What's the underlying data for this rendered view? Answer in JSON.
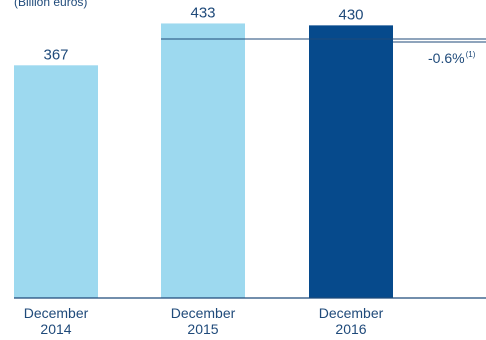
{
  "chart_data": {
    "type": "bar",
    "unit_label": "(Billion euros)",
    "categories": [
      [
        "December",
        "2014"
      ],
      [
        "December",
        "2015"
      ],
      [
        "December",
        "2016"
      ]
    ],
    "values": [
      367,
      433,
      430
    ],
    "value_labels": [
      "367",
      "433",
      "430"
    ],
    "bar_colors": [
      "#9dd9ef",
      "#9dd9ef",
      "#064a8c"
    ],
    "ylim": [
      0,
      470
    ],
    "change_label": "-0.6%",
    "change_note": "(1)",
    "colors": {
      "text": "#1f4a7a",
      "axis": "#1f4a7a",
      "light_bar": "#9dd9ef",
      "dark_bar": "#064a8c"
    }
  }
}
